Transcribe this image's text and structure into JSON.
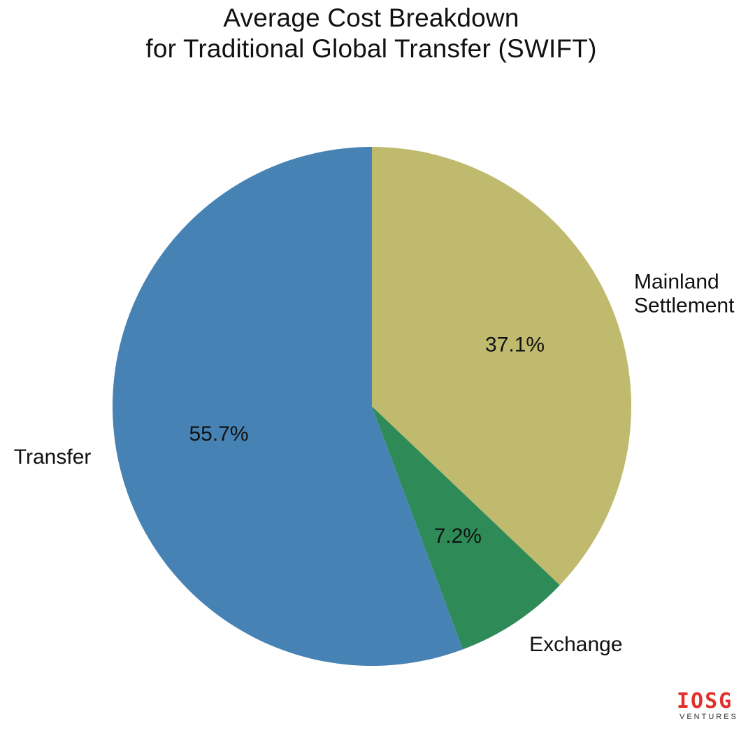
{
  "chart_data": {
    "type": "pie",
    "title_lines": [
      "Average Cost Breakdown",
      "for Traditional Global Transfer (SWIFT)"
    ],
    "slices": [
      {
        "name": "Mainland Settlement",
        "label_lines": [
          "Mainland",
          "Settlement"
        ],
        "value": 37.1,
        "pct_label": "37.1%",
        "color": "#bfba6e"
      },
      {
        "name": "Exchange",
        "label_lines": [
          "Exchange"
        ],
        "value": 7.2,
        "pct_label": "7.2%",
        "color": "#2e8b57"
      },
      {
        "name": "Transfer",
        "label_lines": [
          "Transfer"
        ],
        "value": 55.7,
        "pct_label": "55.7%",
        "color": "#4682b4"
      }
    ],
    "start_angle": "12 o'clock",
    "direction": "clockwise",
    "legend": "none"
  },
  "logo": {
    "mark": "IOSG",
    "sub": "VENTURES",
    "color": "#e0322b"
  }
}
